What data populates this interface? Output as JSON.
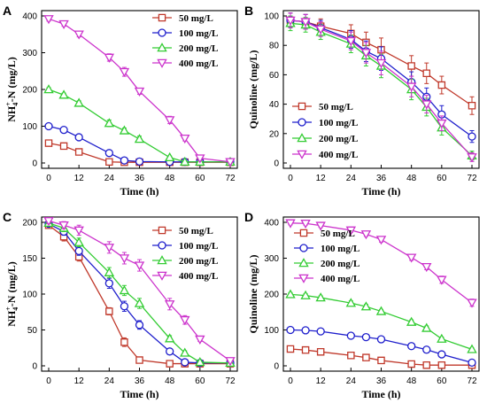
{
  "chart_data": [
    {
      "panel": "A",
      "type": "line",
      "xlabel": "Time (h)",
      "ylabel": "NH4+-N (mg/L)",
      "xlim": [
        0,
        72
      ],
      "ylim": [
        0,
        400
      ],
      "xticks": [
        0,
        12,
        24,
        36,
        48,
        60,
        72
      ],
      "yticks": [
        0,
        100,
        200,
        300,
        400
      ],
      "legend_position": "top-right",
      "series": [
        {
          "name": "50 mg/L",
          "color": "#c0392b",
          "marker": "square",
          "x": [
            0,
            6,
            12,
            24,
            30,
            36,
            48,
            54,
            60,
            72
          ],
          "y": [
            54,
            46,
            30,
            3,
            2,
            2,
            2,
            2,
            2,
            2
          ],
          "err": [
            3,
            3,
            3,
            2,
            2,
            2,
            2,
            2,
            2,
            2
          ]
        },
        {
          "name": "100 mg/L",
          "color": "#1f1fcc",
          "marker": "circle",
          "x": [
            0,
            6,
            12,
            24,
            30,
            36,
            48,
            54,
            60,
            72
          ],
          "y": [
            100,
            90,
            70,
            27,
            7,
            4,
            3,
            3,
            3,
            3
          ],
          "err": [
            4,
            4,
            4,
            3,
            3,
            2,
            2,
            2,
            2,
            2
          ]
        },
        {
          "name": "200 mg/L",
          "color": "#33cc33",
          "marker": "triangle-up",
          "x": [
            0,
            6,
            12,
            24,
            30,
            36,
            48,
            54,
            60,
            72
          ],
          "y": [
            200,
            185,
            163,
            108,
            88,
            65,
            15,
            3,
            3,
            3
          ],
          "err": [
            5,
            5,
            6,
            9,
            7,
            8,
            4,
            2,
            2,
            2
          ]
        },
        {
          "name": "400 mg/L",
          "color": "#cc33cc",
          "marker": "triangle-down",
          "x": [
            0,
            6,
            12,
            24,
            30,
            36,
            48,
            54,
            60,
            72
          ],
          "y": [
            392,
            378,
            350,
            287,
            248,
            195,
            117,
            67,
            13,
            3
          ],
          "err": [
            6,
            6,
            7,
            10,
            12,
            8,
            10,
            7,
            5,
            2
          ]
        }
      ]
    },
    {
      "panel": "B",
      "type": "line",
      "xlabel": "Time (h)",
      "ylabel": "Quinoline (mg/L)",
      "xlim": [
        0,
        72
      ],
      "ylim": [
        0,
        100
      ],
      "xticks": [
        0,
        12,
        24,
        36,
        48,
        60,
        72
      ],
      "yticks": [
        0,
        20,
        40,
        60,
        80,
        100
      ],
      "legend_position": "bottom-left",
      "series": [
        {
          "name": "50 mg/L",
          "color": "#c0392b",
          "marker": "square",
          "x": [
            0,
            6,
            12,
            24,
            30,
            36,
            48,
            54,
            60,
            72
          ],
          "y": [
            97,
            96,
            93,
            88,
            82,
            77,
            66,
            61,
            53,
            39
          ],
          "err": [
            5,
            5,
            5,
            6,
            7,
            8,
            7,
            7,
            6,
            6
          ]
        },
        {
          "name": "100 mg/L",
          "color": "#1f1fcc",
          "marker": "circle",
          "x": [
            0,
            6,
            12,
            24,
            30,
            36,
            48,
            54,
            60,
            72
          ],
          "y": [
            97,
            96,
            92,
            84,
            76,
            71,
            55,
            45,
            33,
            18
          ],
          "err": [
            5,
            5,
            5,
            6,
            7,
            8,
            7,
            6,
            6,
            4
          ]
        },
        {
          "name": "200 mg/L",
          "color": "#33cc33",
          "marker": "triangle-up",
          "x": [
            0,
            6,
            12,
            24,
            30,
            36,
            48,
            54,
            60,
            72
          ],
          "y": [
            95,
            94,
            89,
            81,
            73,
            66,
            50,
            38,
            24,
            5
          ],
          "err": [
            5,
            5,
            5,
            6,
            7,
            8,
            7,
            6,
            5,
            3
          ]
        },
        {
          "name": "400 mg/L",
          "color": "#cc33cc",
          "marker": "triangle-down",
          "x": [
            0,
            6,
            12,
            24,
            30,
            36,
            48,
            54,
            60,
            72
          ],
          "y": [
            97,
            96,
            91,
            83,
            75,
            68,
            52,
            40,
            27,
            4
          ],
          "err": [
            5,
            5,
            5,
            6,
            7,
            8,
            7,
            6,
            5,
            3
          ]
        }
      ]
    },
    {
      "panel": "C",
      "type": "line",
      "xlabel": "Time (h)",
      "ylabel": "NH4+-N (mg/L)",
      "xlim": [
        0,
        72
      ],
      "ylim": [
        0,
        200
      ],
      "xticks": [
        0,
        12,
        24,
        36,
        48,
        60,
        72
      ],
      "yticks": [
        0,
        50,
        100,
        150,
        200
      ],
      "legend_position": "top-right",
      "series": [
        {
          "name": "50 mg/L",
          "color": "#c0392b",
          "marker": "square",
          "x": [
            0,
            6,
            12,
            24,
            30,
            36,
            48,
            54,
            60,
            72
          ],
          "y": [
            196,
            180,
            152,
            76,
            33,
            8,
            3,
            3,
            3,
            3
          ],
          "err": [
            4,
            6,
            6,
            5,
            6,
            2,
            2,
            2,
            2,
            2
          ]
        },
        {
          "name": "100 mg/L",
          "color": "#1f1fcc",
          "marker": "circle",
          "x": [
            0,
            6,
            12,
            24,
            30,
            36,
            48,
            54,
            60,
            72
          ],
          "y": [
            198,
            187,
            160,
            115,
            83,
            57,
            20,
            5,
            4,
            4
          ],
          "err": [
            4,
            5,
            6,
            7,
            7,
            6,
            3,
            2,
            2,
            2
          ]
        },
        {
          "name": "200 mg/L",
          "color": "#33cc33",
          "marker": "triangle-up",
          "x": [
            0,
            6,
            12,
            24,
            30,
            36,
            48,
            54,
            60,
            72
          ],
          "y": [
            199,
            192,
            172,
            130,
            105,
            87,
            38,
            18,
            5,
            4
          ],
          "err": [
            4,
            5,
            6,
            7,
            7,
            7,
            4,
            3,
            2,
            2
          ]
        },
        {
          "name": "400 mg/L",
          "color": "#cc33cc",
          "marker": "triangle-down",
          "x": [
            0,
            6,
            12,
            24,
            30,
            36,
            48,
            54,
            60,
            72
          ],
          "y": [
            202,
            196,
            189,
            165,
            150,
            140,
            86,
            64,
            37,
            7
          ],
          "err": [
            4,
            5,
            7,
            8,
            8,
            8,
            8,
            6,
            3,
            2
          ]
        }
      ]
    },
    {
      "panel": "D",
      "type": "line",
      "xlabel": "Time (h)",
      "ylabel": "Quinoline (mg/L)",
      "xlim": [
        0,
        72
      ],
      "ylim": [
        0,
        400
      ],
      "xticks": [
        0,
        12,
        24,
        36,
        48,
        60,
        72
      ],
      "yticks": [
        0,
        100,
        200,
        300,
        400
      ],
      "legend_position": "top-left",
      "series": [
        {
          "name": "50 mg/L",
          "color": "#c0392b",
          "marker": "square",
          "x": [
            0,
            6,
            12,
            24,
            30,
            36,
            48,
            54,
            60,
            72
          ],
          "y": [
            47,
            44,
            39,
            29,
            23,
            15,
            5,
            2,
            2,
            2
          ],
          "err": [
            3,
            3,
            3,
            3,
            3,
            3,
            2,
            2,
            2,
            2
          ]
        },
        {
          "name": "100 mg/L",
          "color": "#1f1fcc",
          "marker": "circle",
          "x": [
            0,
            6,
            12,
            24,
            30,
            36,
            48,
            54,
            60,
            72
          ],
          "y": [
            100,
            99,
            96,
            84,
            80,
            74,
            55,
            45,
            32,
            9
          ],
          "err": [
            4,
            4,
            4,
            5,
            5,
            5,
            5,
            5,
            4,
            3
          ]
        },
        {
          "name": "200 mg/L",
          "color": "#33cc33",
          "marker": "triangle-up",
          "x": [
            0,
            6,
            12,
            24,
            30,
            36,
            48,
            54,
            60,
            72
          ],
          "y": [
            199,
            196,
            190,
            175,
            165,
            152,
            122,
            105,
            75,
            46
          ],
          "err": [
            5,
            5,
            5,
            6,
            6,
            5,
            6,
            6,
            5,
            4
          ]
        },
        {
          "name": "400 mg/L",
          "color": "#cc33cc",
          "marker": "triangle-down",
          "x": [
            0,
            6,
            12,
            24,
            30,
            36,
            48,
            54,
            60,
            72
          ],
          "y": [
            398,
            397,
            391,
            378,
            367,
            352,
            302,
            276,
            240,
            176
          ],
          "err": [
            5,
            5,
            5,
            6,
            6,
            7,
            8,
            8,
            10,
            10
          ]
        }
      ]
    }
  ]
}
